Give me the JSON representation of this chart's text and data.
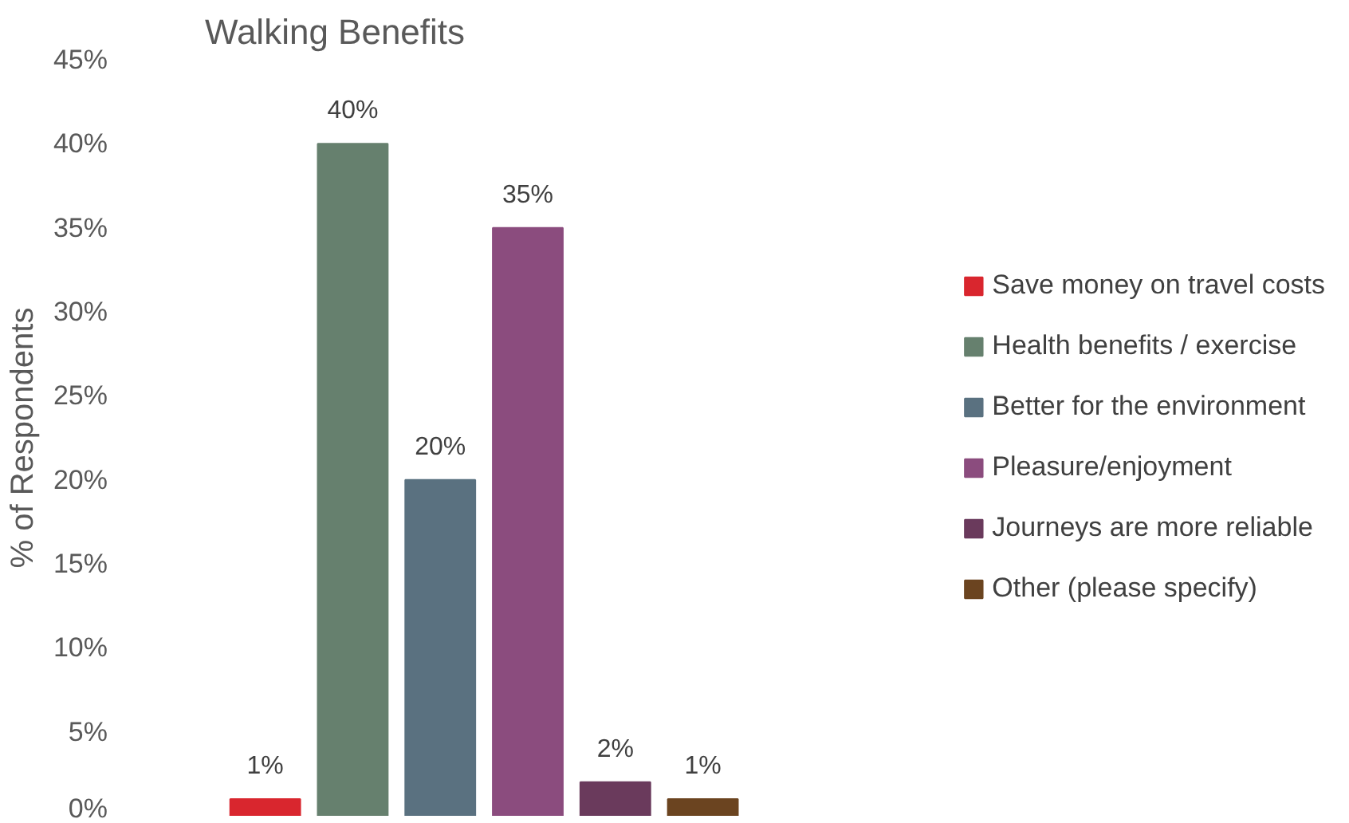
{
  "chart_data": {
    "type": "bar",
    "title": "Walking Benefits",
    "ylabel": "% of Respondents",
    "categories": [
      null,
      null,
      null,
      null,
      null,
      null
    ],
    "series": [
      {
        "name": "Save money on travel costs",
        "color": "#d9262e",
        "values": [
          1,
          null,
          null,
          null,
          null,
          null
        ],
        "value_labels": [
          "1%",
          null,
          null,
          null,
          null,
          null
        ]
      },
      {
        "name": "Health benefits / exercise",
        "color": "#66806e",
        "values": [
          null,
          40,
          null,
          null,
          null,
          null
        ],
        "value_labels": [
          null,
          "40%",
          null,
          null,
          null,
          null
        ]
      },
      {
        "name": "Better for the environment",
        "color": "#5a7180",
        "values": [
          null,
          null,
          20,
          null,
          null,
          null
        ],
        "value_labels": [
          null,
          null,
          "20%",
          null,
          null,
          null
        ]
      },
      {
        "name": "Pleasure/enjoyment",
        "color": "#8b4c7e",
        "values": [
          null,
          null,
          null,
          35,
          null,
          null
        ],
        "value_labels": [
          null,
          null,
          null,
          "35%",
          null,
          null
        ]
      },
      {
        "name": "Journeys are more reliable",
        "color": "#6a3a5c",
        "values": [
          null,
          null,
          null,
          null,
          2,
          null
        ],
        "value_labels": [
          null,
          null,
          null,
          null,
          "2%",
          null
        ]
      },
      {
        "name": "Other (please specify)",
        "color": "#6b4420",
        "values": [
          null,
          null,
          null,
          null,
          null,
          1
        ],
        "value_labels": [
          null,
          null,
          null,
          null,
          null,
          "1%"
        ]
      }
    ],
    "ylim": [
      0,
      45
    ],
    "yticks": [
      {
        "value": 0,
        "label": "0%"
      },
      {
        "value": 5,
        "label": "5%"
      },
      {
        "value": 10,
        "label": "10%"
      },
      {
        "value": 15,
        "label": "15%"
      },
      {
        "value": 20,
        "label": "20%"
      },
      {
        "value": 25,
        "label": "25%"
      },
      {
        "value": 30,
        "label": "30%"
      },
      {
        "value": 35,
        "label": "35%"
      },
      {
        "value": 40,
        "label": "40%"
      },
      {
        "value": 45,
        "label": "45%"
      }
    ],
    "tick_labels": "y",
    "legend": "right",
    "grid": false,
    "stacked": true
  }
}
